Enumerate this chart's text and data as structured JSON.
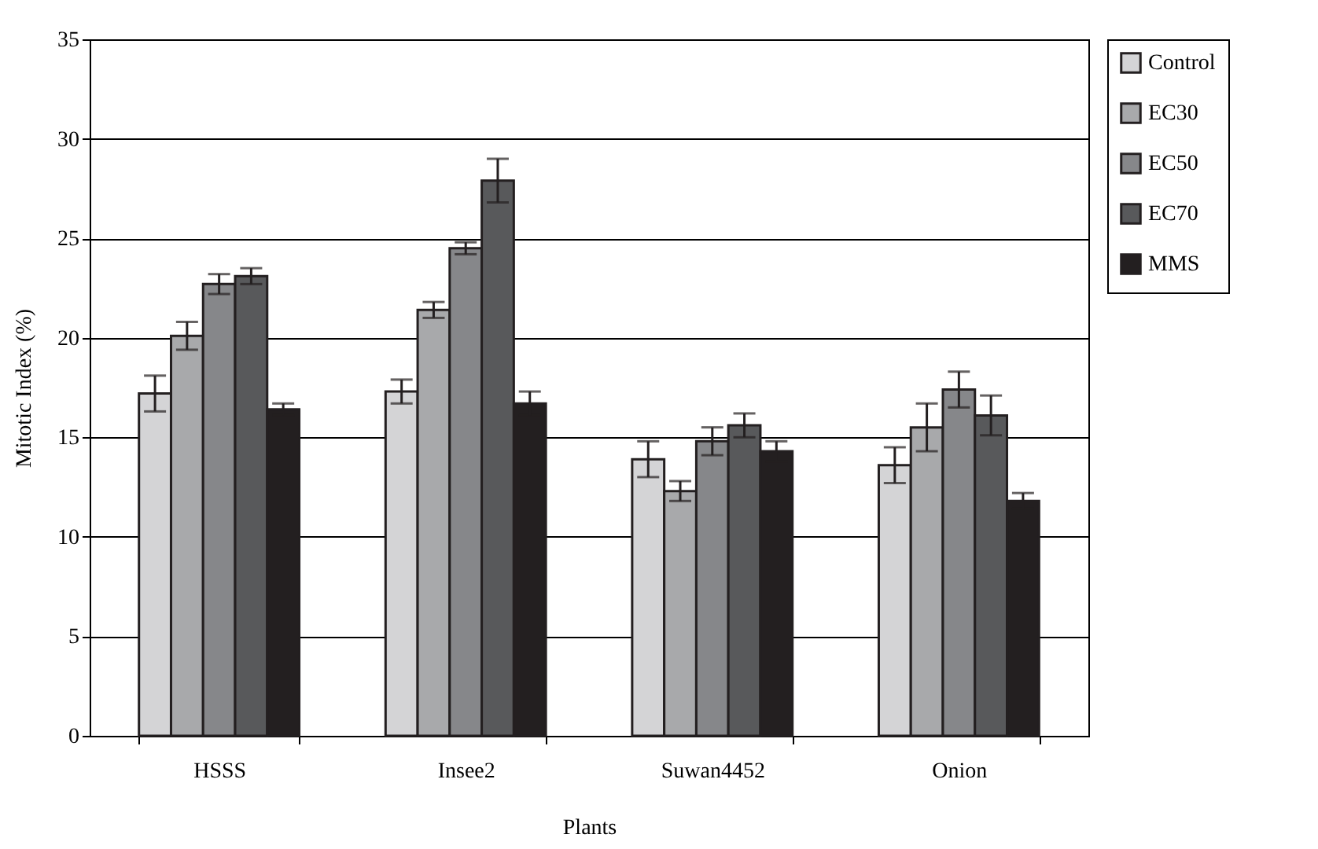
{
  "chart_data": {
    "type": "bar",
    "xlabel": "Plants",
    "ylabel": "Mitotic Index (%)",
    "categories": [
      "HSSS",
      "Insee2",
      "Suwan4452",
      "Onion"
    ],
    "series": [
      {
        "name": "Control",
        "color": "#d4d4d6",
        "values": [
          17.2,
          17.3,
          13.9,
          13.6
        ],
        "errors": [
          0.9,
          0.6,
          0.9,
          0.9
        ]
      },
      {
        "name": "EC30",
        "color": "#a8a9ab",
        "values": [
          20.1,
          21.4,
          12.3,
          15.5
        ],
        "errors": [
          0.7,
          0.4,
          0.5,
          1.2
        ]
      },
      {
        "name": "EC50",
        "color": "#86878a",
        "values": [
          22.7,
          24.5,
          14.8,
          17.4
        ],
        "errors": [
          0.5,
          0.3,
          0.7,
          0.9
        ]
      },
      {
        "name": "EC70",
        "color": "#58595b",
        "values": [
          23.1,
          27.9,
          15.6,
          16.1
        ],
        "errors": [
          0.4,
          1.1,
          0.6,
          1.0
        ]
      },
      {
        "name": "MMS",
        "color": "#231f20",
        "values": [
          16.4,
          16.7,
          14.3,
          11.8
        ],
        "errors": [
          0.3,
          0.6,
          0.5,
          0.4
        ]
      }
    ],
    "ylim": [
      0,
      35
    ],
    "yticks": [
      0,
      5,
      10,
      15,
      20,
      25,
      30,
      35
    ],
    "grid": "y",
    "legend": "right"
  }
}
